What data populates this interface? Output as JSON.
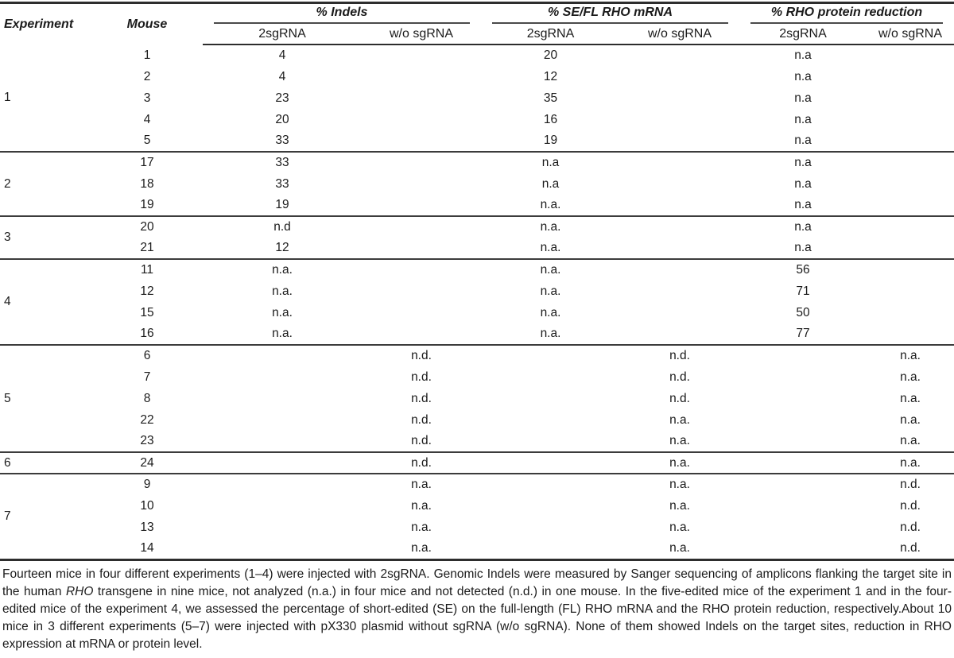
{
  "table": {
    "header": {
      "experiment": "Experiment",
      "mouse": "Mouse",
      "groups": [
        {
          "label": "% Indels",
          "sub_2sgrna": "2sgRNA",
          "sub_wo": "w/o sgRNA"
        },
        {
          "label": "% SE/FL RHO mRNA",
          "sub_2sgrna": "2sgRNA",
          "sub_wo": "w/o sgRNA"
        },
        {
          "label": "% RHO protein reduction",
          "sub_2sgrna": "2sgRNA",
          "sub_wo": "w/o sgRNA"
        }
      ]
    },
    "column_keys": [
      "mouse",
      "indels_2sgRNA",
      "indels_wo_sgRNA",
      "se_fl_rho_mrna_2sgRNA",
      "se_fl_rho_mrna_wo_sgRNA",
      "rho_protein_reduction_2sgRNA",
      "rho_protein_reduction_wo_sgRNA"
    ],
    "experiment_groups": [
      {
        "experiment": "1",
        "rows": [
          [
            "1",
            "4",
            "",
            "20",
            "",
            "n.a",
            ""
          ],
          [
            "2",
            "4",
            "",
            "12",
            "",
            "n.a",
            ""
          ],
          [
            "3",
            "23",
            "",
            "35",
            "",
            "n.a",
            ""
          ],
          [
            "4",
            "20",
            "",
            "16",
            "",
            "n.a",
            ""
          ],
          [
            "5",
            "33",
            "",
            "19",
            "",
            "n.a",
            ""
          ]
        ]
      },
      {
        "experiment": "2",
        "rows": [
          [
            "17",
            "33",
            "",
            "n.a",
            "",
            "n.a",
            ""
          ],
          [
            "18",
            "33",
            "",
            "n.a",
            "",
            "n.a",
            ""
          ],
          [
            "19",
            "19",
            "",
            "n.a.",
            "",
            "n.a",
            ""
          ]
        ]
      },
      {
        "experiment": "3",
        "rows": [
          [
            "20",
            "n.d",
            "",
            "n.a.",
            "",
            "n.a",
            ""
          ],
          [
            "21",
            "12",
            "",
            "n.a.",
            "",
            "n.a",
            ""
          ]
        ]
      },
      {
        "experiment": "4",
        "rows": [
          [
            "11",
            "n.a.",
            "",
            "n.a.",
            "",
            "56",
            ""
          ],
          [
            "12",
            "n.a.",
            "",
            "n.a.",
            "",
            "71",
            ""
          ],
          [
            "15",
            "n.a.",
            "",
            "n.a.",
            "",
            "50",
            ""
          ],
          [
            "16",
            "n.a.",
            "",
            "n.a.",
            "",
            "77",
            ""
          ]
        ]
      },
      {
        "experiment": "5",
        "rows": [
          [
            "6",
            "",
            "n.d.",
            "",
            "n.d.",
            "",
            "n.a."
          ],
          [
            "7",
            "",
            "n.d.",
            "",
            "n.d.",
            "",
            "n.a."
          ],
          [
            "8",
            "",
            "n.d.",
            "",
            "n.d.",
            "",
            "n.a."
          ],
          [
            "22",
            "",
            "n.d.",
            "",
            "n.a.",
            "",
            "n.a."
          ],
          [
            "23",
            "",
            "n.d.",
            "",
            "n.a.",
            "",
            "n.a."
          ]
        ]
      },
      {
        "experiment": "6",
        "rows": [
          [
            "24",
            "",
            "n.d.",
            "",
            "n.a.",
            "",
            "n.a."
          ]
        ]
      },
      {
        "experiment": "7",
        "rows": [
          [
            "9",
            "",
            "n.a.",
            "",
            "n.a.",
            "",
            "n.d."
          ],
          [
            "10",
            "",
            "n.a.",
            "",
            "n.a.",
            "",
            "n.d."
          ],
          [
            "13",
            "",
            "n.a.",
            "",
            "n.a.",
            "",
            "n.d."
          ],
          [
            "14",
            "",
            "n.a.",
            "",
            "n.a.",
            "",
            "n.d."
          ]
        ]
      }
    ]
  },
  "footnote": {
    "segments": [
      {
        "text": "Fourteen mice in four different experiments (1–4) were injected with 2sgRNA. Genomic Indels were measured by Sanger sequencing of amplicons flanking the target site in the human ",
        "italic": false
      },
      {
        "text": "RHO",
        "italic": true
      },
      {
        "text": " transgene in nine mice, not analyzed (n.a.) in four mice and not detected (n.d.) in one mouse. In the five-edited mice of the experiment 1 and in the four-edited mice of the experiment 4, we assessed the percentage of short-edited (SE) on the full-length (FL) RHO mRNA and the RHO protein reduction, respectively.About 10 mice in 3 different experiments (5–7) were injected with pX330 plasmid without sgRNA (w/o sgRNA). None of them showed Indels on the target sites, reduction in RHO expression at mRNA or protein level.",
        "italic": false
      }
    ]
  },
  "colors": {
    "text": "#1b1b1b",
    "rule_heavy": "#2d2d2d",
    "rule_light": "#3c3c3c",
    "background": "#ffffff"
  }
}
